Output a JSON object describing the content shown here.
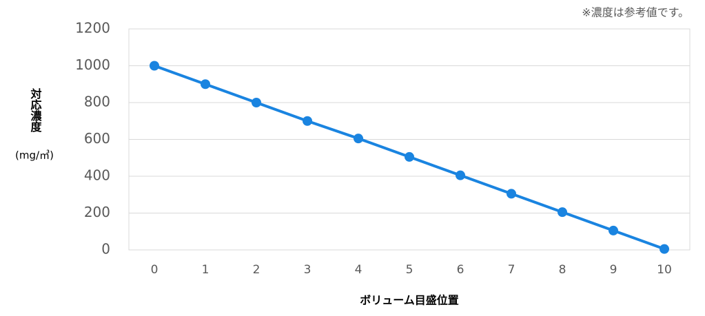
{
  "chart_data": {
    "type": "line",
    "note": "※濃度は参考値です。",
    "y_label": "対応濃度",
    "y_unit": "(mg/㎥)",
    "x_label": "ボリューム目盛位置",
    "categories": [
      "0",
      "1",
      "2",
      "3",
      "4",
      "5",
      "6",
      "7",
      "8",
      "9",
      "10"
    ],
    "series": [
      {
        "color": "#1a84e0",
        "values": [
          1000,
          900,
          800,
          700,
          605,
          505,
          405,
          305,
          205,
          105,
          5
        ]
      }
    ],
    "ylim": [
      0,
      1200
    ],
    "yticks": [
      0,
      200,
      400,
      600,
      800,
      1000,
      1200
    ],
    "grid": true
  }
}
